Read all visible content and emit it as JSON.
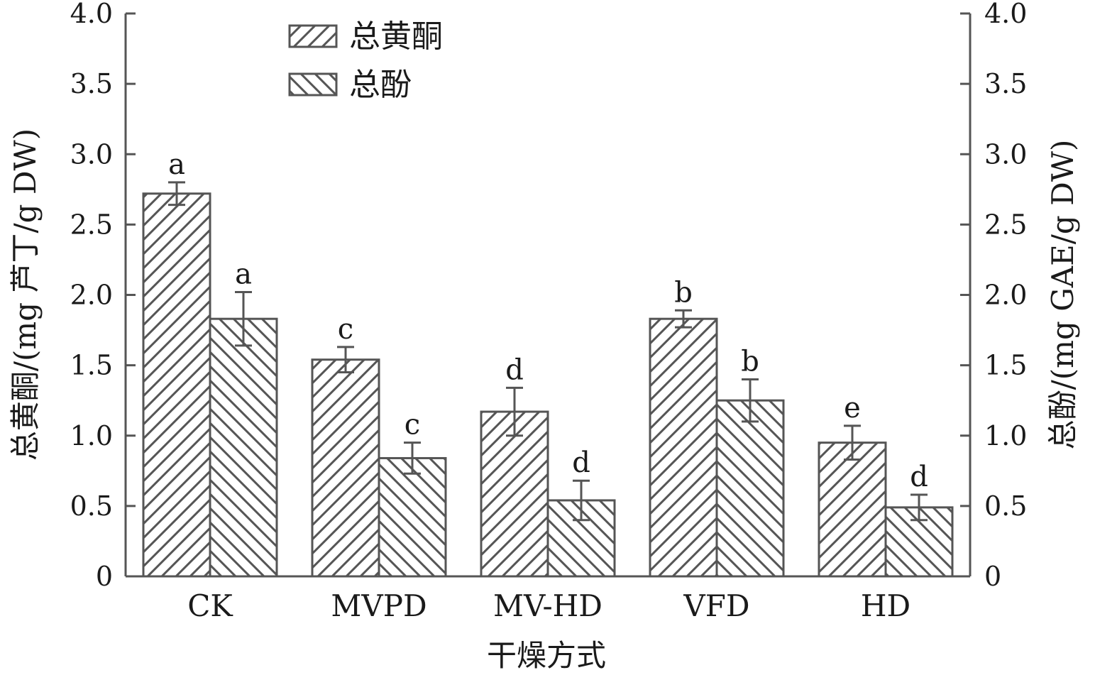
{
  "chart_data": {
    "type": "bar",
    "categories": [
      "CK",
      "MVPD",
      "MV-HD",
      "VFD",
      "HD"
    ],
    "series": [
      {
        "name": "总黄酮",
        "values": [
          2.72,
          1.54,
          1.17,
          1.83,
          0.95
        ],
        "errors": [
          0.08,
          0.09,
          0.17,
          0.06,
          0.12
        ],
        "labels": [
          "a",
          "c",
          "d",
          "b",
          "e"
        ],
        "pattern": "diagonal-forward"
      },
      {
        "name": "总酚",
        "values": [
          1.83,
          0.84,
          0.54,
          1.25,
          0.49
        ],
        "errors": [
          0.19,
          0.11,
          0.14,
          0.15,
          0.09
        ],
        "labels": [
          "a",
          "c",
          "d",
          "b",
          "d"
        ],
        "pattern": "diagonal-backward"
      }
    ],
    "xlabel": "干燥方式",
    "ylabel_left": "总黄酮/(mg 芦丁/g DW)",
    "ylabel_right": "总酚/(mg GAE/g DW)",
    "ylim": [
      0,
      4.0
    ],
    "yticks": [
      "0",
      "0.5",
      "1.0",
      "1.5",
      "2.0",
      "2.5",
      "3.0",
      "3.5",
      "4.0"
    ],
    "legend_position": "top-left",
    "grid": false,
    "colors": {
      "stroke": "#555555",
      "hatch": "#555555",
      "text": "#1a1a1a"
    }
  }
}
